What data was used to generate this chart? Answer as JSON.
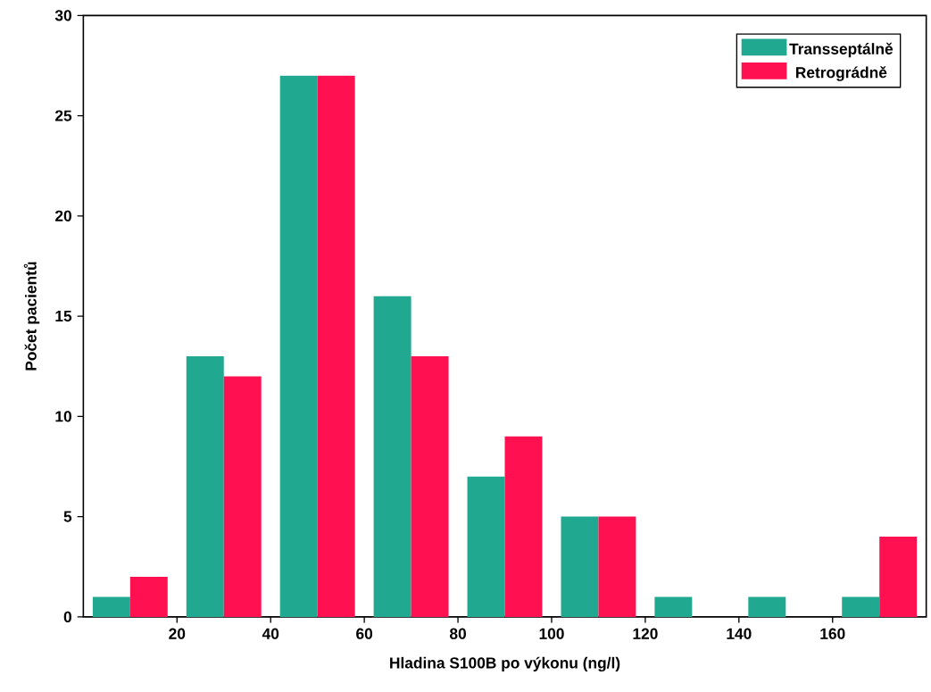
{
  "chart_data": {
    "type": "bar",
    "xlabel": "Hladina S100B po výkonu (ng/l)",
    "ylabel": "Počet pacientů",
    "x": [
      10,
      30,
      50,
      70,
      90,
      110,
      130,
      150,
      170
    ],
    "series": [
      {
        "name": "Transseptálně",
        "color": "#20a990",
        "values": [
          1,
          13,
          27,
          16,
          7,
          5,
          1,
          1,
          1
        ]
      },
      {
        "name": "Retrográdně",
        "color": "#ff1050",
        "values": [
          2,
          12,
          27,
          13,
          9,
          5,
          0,
          0,
          4
        ]
      }
    ],
    "xlim": [
      0,
      180
    ],
    "ylim": [
      0,
      30
    ],
    "xticks": [
      20,
      40,
      60,
      80,
      100,
      120,
      140,
      160
    ],
    "yticks": [
      0,
      5,
      10,
      15,
      20,
      25,
      30
    ],
    "legend": "top right"
  }
}
